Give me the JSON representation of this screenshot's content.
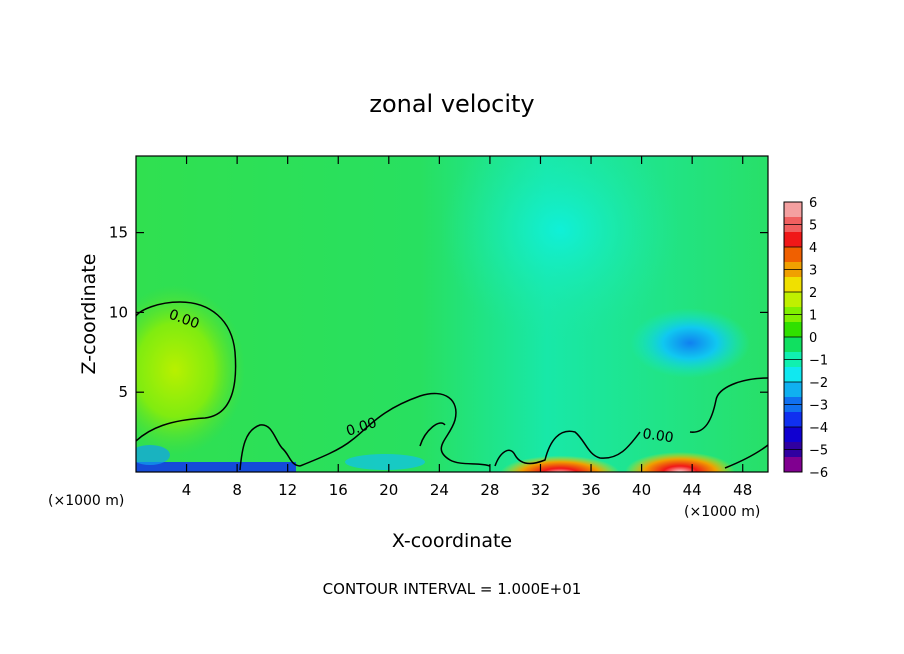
{
  "chart_data": {
    "type": "heatmap",
    "title": "zonal velocity",
    "xlabel": "X-coordinate",
    "ylabel": "Z-coordinate",
    "x_unit_note": "(×1000 m)",
    "xlim": [
      0,
      50
    ],
    "ylim": [
      0,
      19.8
    ],
    "x_ticks": [
      4,
      8,
      12,
      16,
      20,
      24,
      28,
      32,
      36,
      40,
      44,
      48
    ],
    "y_ticks": [
      5,
      10,
      15
    ],
    "footer": "CONTOUR INTERVAL = 1.000E+01",
    "colorbar": {
      "ticks": [
        6,
        5,
        4,
        3,
        2,
        1,
        0,
        -1,
        -2,
        -3,
        -4,
        -5,
        -6
      ],
      "tick_labels": [
        "6",
        "5",
        "4",
        "3",
        "2",
        "1",
        "0",
        "−1",
        "−2",
        "−3",
        "−4",
        "−5",
        "−6"
      ],
      "colors": [
        "#f4a0a0",
        "#f06060",
        "#f01818",
        "#f06000",
        "#f0a000",
        "#f0e000",
        "#c0f000",
        "#80f000",
        "#30e000",
        "#10e060",
        "#10f0b0",
        "#10e8f0",
        "#10b0f0",
        "#1070f0",
        "#1030f0",
        "#1000d0",
        "#3000a0",
        "#800090"
      ]
    },
    "contours": [
      {
        "label": "0.00",
        "level": 0
      }
    ],
    "features": [
      {
        "name": "positive core",
        "x": 4,
        "z": 6,
        "value": 1
      },
      {
        "name": "negative core",
        "x": 44,
        "z": 8.2,
        "value": -2.5
      },
      {
        "name": "surface jet",
        "x": 43,
        "z": 0.3,
        "value": 5
      },
      {
        "name": "surface negative",
        "x": 6,
        "z": 0.2,
        "value": -4
      }
    ]
  }
}
